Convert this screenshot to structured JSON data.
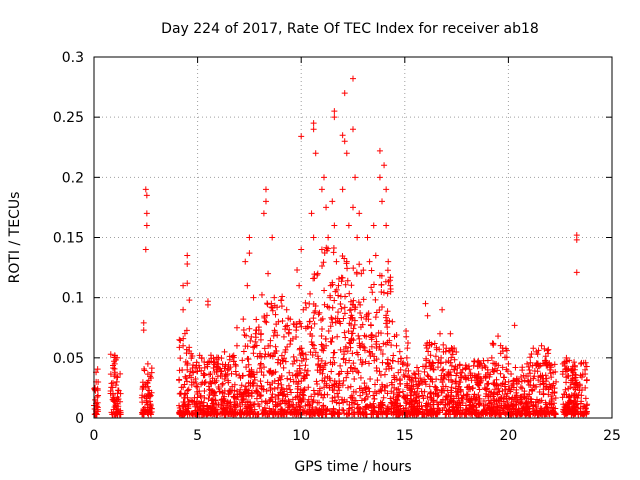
{
  "chart_data": {
    "type": "scatter",
    "title": "Day 224 of 2017, Rate Of TEC Index for receiver ab18",
    "xlabel": "GPS time / hours",
    "ylabel": "ROTI / TECUs",
    "xlim": [
      0,
      25
    ],
    "ylim": [
      0,
      0.3
    ],
    "x_ticks": [
      0,
      5,
      10,
      15,
      20,
      25
    ],
    "y_ticks": [
      0,
      0.05,
      0.1,
      0.15,
      0.2,
      0.25,
      0.3
    ],
    "x_tick_labels": [
      "0",
      "5",
      "10",
      "15",
      "20",
      "25"
    ],
    "y_tick_labels": [
      "0",
      "0.05",
      "0.1",
      "0.15",
      "0.2",
      "0.25",
      "0.3"
    ],
    "grid": true,
    "marker": "+",
    "color": "#ff0000",
    "points": [
      [
        0.1,
        0.038
      ],
      [
        0.1,
        0.012
      ],
      [
        0.05,
        0.025
      ],
      [
        1.0,
        0.052
      ],
      [
        1.0,
        0.045
      ],
      [
        1.1,
        0.03
      ],
      [
        1.0,
        0.015
      ],
      [
        2.5,
        0.19
      ],
      [
        2.55,
        0.185
      ],
      [
        2.55,
        0.17
      ],
      [
        2.55,
        0.16
      ],
      [
        2.5,
        0.14
      ],
      [
        2.4,
        0.079
      ],
      [
        2.4,
        0.073
      ],
      [
        2.6,
        0.045
      ],
      [
        2.6,
        0.02
      ],
      [
        4.3,
        0.11
      ],
      [
        4.5,
        0.135
      ],
      [
        4.5,
        0.128
      ],
      [
        4.5,
        0.112
      ],
      [
        4.6,
        0.098
      ],
      [
        4.3,
        0.09
      ],
      [
        4.3,
        0.06
      ],
      [
        4.5,
        0.04
      ],
      [
        4.2,
        0.02
      ],
      [
        5.5,
        0.097
      ],
      [
        5.5,
        0.094
      ],
      [
        5.2,
        0.05
      ],
      [
        5.6,
        0.03
      ],
      [
        6.0,
        0.045
      ],
      [
        6.3,
        0.055
      ],
      [
        6.5,
        0.02
      ],
      [
        6.9,
        0.06
      ],
      [
        6.9,
        0.075
      ],
      [
        7.3,
        0.13
      ],
      [
        7.5,
        0.15
      ],
      [
        7.5,
        0.137
      ],
      [
        7.4,
        0.11
      ],
      [
        7.7,
        0.1
      ],
      [
        7.8,
        0.07
      ],
      [
        7.6,
        0.04
      ],
      [
        7.9,
        0.02
      ],
      [
        8.2,
        0.17
      ],
      [
        8.3,
        0.18
      ],
      [
        8.3,
        0.19
      ],
      [
        8.4,
        0.12
      ],
      [
        8.6,
        0.15
      ],
      [
        8.7,
        0.1
      ],
      [
        8.5,
        0.06
      ],
      [
        8.9,
        0.08
      ],
      [
        9.0,
        0.045
      ],
      [
        9.3,
        0.09
      ],
      [
        9.4,
        0.07
      ],
      [
        9.6,
        0.045
      ],
      [
        9.8,
        0.123
      ],
      [
        9.9,
        0.11
      ],
      [
        10.0,
        0.234
      ],
      [
        10.0,
        0.14
      ],
      [
        10.1,
        0.09
      ],
      [
        10.6,
        0.245
      ],
      [
        10.6,
        0.24
      ],
      [
        10.7,
        0.22
      ],
      [
        10.5,
        0.17
      ],
      [
        10.6,
        0.15
      ],
      [
        10.4,
        0.08
      ],
      [
        10.8,
        0.12
      ],
      [
        11.0,
        0.19
      ],
      [
        11.1,
        0.2
      ],
      [
        11.2,
        0.175
      ],
      [
        11.3,
        0.15
      ],
      [
        11.0,
        0.14
      ],
      [
        11.4,
        0.1
      ],
      [
        11.2,
        0.06
      ],
      [
        11.6,
        0.25
      ],
      [
        11.6,
        0.255
      ],
      [
        11.5,
        0.18
      ],
      [
        11.6,
        0.16
      ],
      [
        11.7,
        0.13
      ],
      [
        11.8,
        0.11
      ],
      [
        12.0,
        0.235
      ],
      [
        12.1,
        0.27
      ],
      [
        12.1,
        0.23
      ],
      [
        12.2,
        0.22
      ],
      [
        12.0,
        0.19
      ],
      [
        12.3,
        0.16
      ],
      [
        12.2,
        0.13
      ],
      [
        12.4,
        0.09
      ],
      [
        12.5,
        0.282
      ],
      [
        12.5,
        0.24
      ],
      [
        12.6,
        0.2
      ],
      [
        12.5,
        0.175
      ],
      [
        12.7,
        0.15
      ],
      [
        12.8,
        0.17
      ],
      [
        12.9,
        0.12
      ],
      [
        13.2,
        0.15
      ],
      [
        13.3,
        0.13
      ],
      [
        13.5,
        0.16
      ],
      [
        13.6,
        0.135
      ],
      [
        13.8,
        0.222
      ],
      [
        13.8,
        0.2
      ],
      [
        13.9,
        0.18
      ],
      [
        14.0,
        0.21
      ],
      [
        14.1,
        0.19
      ],
      [
        14.1,
        0.16
      ],
      [
        14.2,
        0.13
      ],
      [
        14.3,
        0.11
      ],
      [
        14.4,
        0.08
      ],
      [
        14.6,
        0.06
      ],
      [
        14.8,
        0.04
      ],
      [
        15.1,
        0.05
      ],
      [
        15.4,
        0.03
      ],
      [
        16.0,
        0.095
      ],
      [
        16.1,
        0.085
      ],
      [
        16.2,
        0.06
      ],
      [
        16.4,
        0.04
      ],
      [
        16.7,
        0.07
      ],
      [
        16.8,
        0.09
      ],
      [
        17.0,
        0.058
      ],
      [
        17.2,
        0.07
      ],
      [
        17.4,
        0.04
      ],
      [
        17.9,
        0.035
      ],
      [
        18.5,
        0.03
      ],
      [
        19.0,
        0.04
      ],
      [
        19.2,
        0.05
      ],
      [
        19.5,
        0.068
      ],
      [
        20.0,
        0.045
      ],
      [
        20.3,
        0.077
      ],
      [
        20.5,
        0.03
      ],
      [
        20.9,
        0.045
      ],
      [
        21.2,
        0.058
      ],
      [
        21.6,
        0.06
      ],
      [
        22.0,
        0.04
      ],
      [
        22.3,
        0.03
      ],
      [
        22.8,
        0.05
      ],
      [
        23.3,
        0.152
      ],
      [
        23.3,
        0.148
      ],
      [
        23.3,
        0.121
      ],
      [
        23.5,
        0.045
      ],
      [
        23.7,
        0.04
      ],
      [
        23.2,
        0.02
      ]
    ],
    "dense_band_hint": "dense cluster of points between y=0.005 and y=0.05 spanning x=0 to 24"
  }
}
